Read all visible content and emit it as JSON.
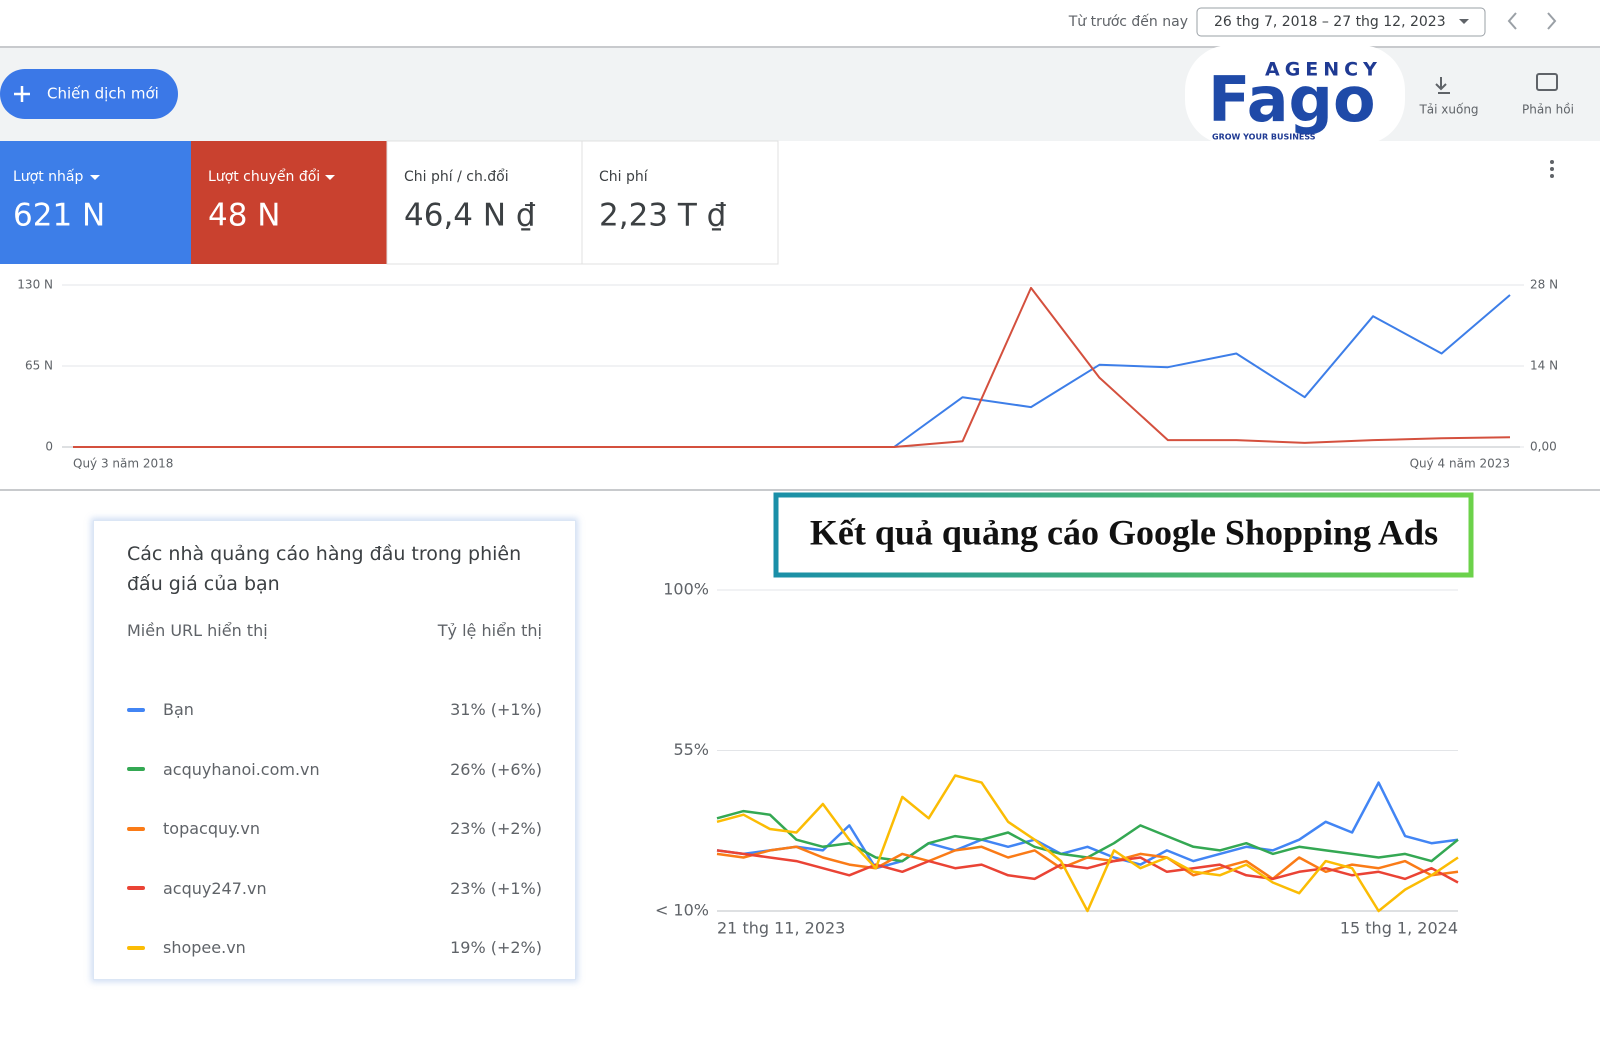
{
  "header": {
    "range_label": "Từ trước đến nay",
    "date_range": "26 thg 7, 2018 – 27 thg 12, 2023"
  },
  "toolbar": {
    "new_campaign": "Chiến dịch mới",
    "download": "Tải xuống",
    "feedback": "Phản hồi"
  },
  "logo": {
    "agency": "AGENCY",
    "brand": "Fago",
    "tagline": "GROW YOUR BUSINESS"
  },
  "metrics": [
    {
      "label": "Lượt nhấp",
      "value": "621 N"
    },
    {
      "label": "Lượt chuyển đổi",
      "value": "48 N"
    },
    {
      "label": "Chi phí / ch.đổi",
      "value": "46,4 N ₫"
    },
    {
      "label": "Chi phí",
      "value": "2,23 T ₫"
    }
  ],
  "banner": "Kết quả quảng cáo Google Shopping Ads",
  "auction_card": {
    "title": "Các nhà quảng cáo hàng đầu trong phiên đấu giá của bạn",
    "columns": [
      "Miền URL hiển thị",
      "Tỷ lệ hiển thị"
    ],
    "shares": [
      "31% (+1%)",
      "26% (+6%)",
      "23% (+2%)",
      "23% (+1%)",
      "19% (+2%)"
    ]
  },
  "chart_data": [
    {
      "type": "line",
      "categories": [
        "Quý 3 năm 2018",
        null,
        null,
        null,
        null,
        null,
        null,
        null,
        null,
        null,
        null,
        null,
        null,
        null,
        null,
        null,
        null,
        null,
        null,
        null,
        null,
        "Quý 4 năm 2023"
      ],
      "series": [
        {
          "color": "#3d7ee8",
          "values": [
            0,
            0,
            0,
            0,
            0,
            0,
            0,
            0,
            0,
            0,
            0,
            0,
            0,
            40,
            32,
            66,
            64,
            75,
            40,
            105,
            75,
            122
          ]
        },
        {
          "color": "#d4503e",
          "axis": "y2",
          "values": [
            0,
            0,
            0,
            0,
            0,
            0,
            0,
            0,
            0,
            0,
            0,
            0,
            0,
            1,
            27.5,
            12,
            1.2,
            1.2,
            0.7,
            1.2,
            1.5,
            1.7
          ]
        }
      ],
      "ylim": [
        0,
        130
      ],
      "yticks": [
        {
          "value": 0,
          "label": "0"
        },
        {
          "value": 65,
          "label": "65 N"
        },
        {
          "value": 130,
          "label": "130 N"
        }
      ],
      "y2lim": [
        0,
        28
      ],
      "y2ticks": [
        {
          "value": 0,
          "label": "0,00"
        },
        {
          "value": 14,
          "label": "14 N"
        },
        {
          "value": 28,
          "label": "28 N"
        }
      ],
      "grid": true
    },
    {
      "type": "line",
      "categories": [
        "21 thg 11, 2023",
        null,
        null,
        null,
        null,
        null,
        null,
        null,
        null,
        null,
        null,
        null,
        null,
        null,
        null,
        null,
        null,
        null,
        null,
        null,
        null,
        null,
        null,
        null,
        null,
        null,
        null,
        null,
        "15 thg 1, 2024"
      ],
      "series": [
        {
          "name": "Bạn",
          "color": "#4285f4",
          "values": [
            27,
            26,
            27,
            28,
            27,
            34,
            22,
            24,
            29,
            27,
            30,
            28,
            30,
            26,
            28,
            25,
            23,
            27,
            24,
            26,
            28,
            27,
            30,
            35,
            32,
            46,
            31,
            29,
            30
          ]
        },
        {
          "name": "acquyhanoi.com.vn",
          "color": "#34a853",
          "values": [
            36,
            38,
            37,
            30,
            28,
            29,
            25,
            24,
            29,
            31,
            30,
            32,
            28,
            26,
            25,
            29,
            34,
            31,
            28,
            27,
            29,
            26,
            28,
            27,
            26,
            25,
            26,
            24,
            30
          ]
        },
        {
          "name": "topacquy.vn",
          "color": "#fa7b17",
          "values": [
            26,
            25,
            27,
            28,
            25,
            23,
            22,
            26,
            24,
            27,
            28,
            25,
            27,
            22,
            25,
            24,
            26,
            25,
            20,
            22,
            24,
            19,
            25,
            21,
            23,
            22,
            24,
            20,
            21
          ]
        },
        {
          "name": "acquy247.vn",
          "color": "#ea4335",
          "values": [
            27,
            26,
            25,
            24,
            22,
            20,
            23,
            21,
            24,
            22,
            23,
            20,
            19,
            23,
            22,
            24,
            25,
            21,
            22,
            23,
            20,
            19,
            21,
            22,
            20,
            21,
            19,
            22,
            18
          ]
        },
        {
          "name": "shopee.vn",
          "color": "#fbbc04",
          "values": [
            35,
            37,
            33,
            32,
            40,
            30,
            22,
            42,
            36,
            48,
            46,
            35,
            30,
            24,
            10,
            27,
            22,
            25,
            21,
            20,
            23,
            18,
            15,
            24,
            22,
            10,
            16,
            20,
            25
          ]
        }
      ],
      "ylim": [
        10,
        100
      ],
      "yticks": [
        {
          "value": 10,
          "label": "< 10%"
        },
        {
          "value": 55,
          "label": "55%"
        },
        {
          "value": 100,
          "label": "100%"
        }
      ],
      "grid": true
    }
  ]
}
